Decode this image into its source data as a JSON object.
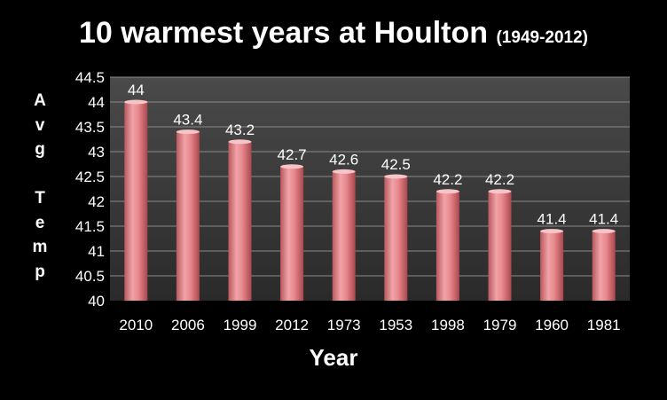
{
  "chart_data": {
    "type": "bar",
    "title": "10 warmest years at Houlton",
    "subtitle": "(1949-2012)",
    "xlabel": "Year",
    "ylabel": "Avg Temp",
    "categories": [
      "2010",
      "2006",
      "1999",
      "2012",
      "1973",
      "1953",
      "1998",
      "1979",
      "1960",
      "1981"
    ],
    "values": [
      44,
      43.4,
      43.2,
      42.7,
      42.6,
      42.5,
      42.2,
      42.2,
      41.4,
      41.4
    ],
    "data_labels": [
      "44",
      "43.4",
      "43.2",
      "42.7",
      "42.6",
      "42.5",
      "42.2",
      "42.2",
      "41.4",
      "41.4"
    ],
    "ylim": [
      40,
      44.5
    ],
    "yticks": [
      "40",
      "40.5",
      "41",
      "41.5",
      "42",
      "42.5",
      "43",
      "43.5",
      "44",
      "44.5"
    ],
    "grid": true,
    "legend": "none",
    "colors": {
      "background": "#000000",
      "plot_area": "#3a3a3a",
      "bar": "#e8898e",
      "text": "#ffffff",
      "gridline": "#8a8a8a"
    }
  }
}
